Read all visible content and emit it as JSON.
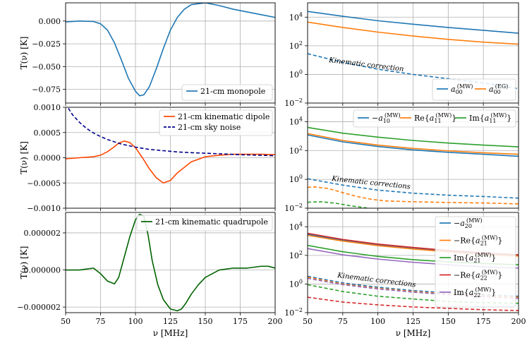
{
  "figure": {
    "x_axis_label": "ν [MHz]",
    "y_axis_label": "T(ν) [K]"
  },
  "colors": {
    "blue": "#1f77b4",
    "orange": "#ff7f0e",
    "green": "#2ca02c",
    "red": "#d62728",
    "purple": "#9467bd",
    "kin_dipole": "#ff4500",
    "sky_noise": "#00008b",
    "kin_quad": "#006400"
  },
  "chart_data": [
    {
      "id": "p1",
      "type": "line",
      "x_range": [
        50,
        200
      ],
      "y_range": [
        -0.09,
        0.02
      ],
      "y_scale": "linear",
      "x_ticks": [
        "50",
        "75",
        "100",
        "125",
        "150",
        "175",
        "200"
      ],
      "x_tick_labels_shown": false,
      "y_ticks": [
        {
          "v": 0.0,
          "label": "0.000"
        },
        {
          "v": -0.025,
          "label": "−0.025"
        },
        {
          "v": -0.05,
          "label": "−0.050"
        },
        {
          "v": -0.075,
          "label": "−0.075"
        }
      ],
      "ylabel": "T(ν) [K]",
      "series": [
        {
          "name": "21-cm monopole",
          "color": "#1f77b4",
          "dash": "solid",
          "x": [
            50,
            60,
            70,
            75,
            80,
            85,
            90,
            95,
            100,
            103,
            106,
            110,
            115,
            120,
            125,
            130,
            135,
            140,
            150,
            160,
            170,
            180,
            190,
            200
          ],
          "y": [
            -0.001,
            0.0,
            -0.0005,
            -0.003,
            -0.01,
            -0.024,
            -0.043,
            -0.063,
            -0.077,
            -0.082,
            -0.081,
            -0.072,
            -0.052,
            -0.03,
            -0.01,
            0.004,
            0.013,
            0.018,
            0.02,
            0.017,
            0.013,
            0.01,
            0.007,
            0.004
          ]
        }
      ],
      "legend": {
        "position": "bottom-right",
        "entries": [
          "21-cm monopole"
        ]
      }
    },
    {
      "id": "p2",
      "type": "line",
      "x_range": [
        50,
        200
      ],
      "y_range": [
        0.01,
        100000
      ],
      "y_scale": "log",
      "x_ticks": [
        "50",
        "75",
        "100",
        "125",
        "150",
        "175",
        "200"
      ],
      "x_tick_labels_shown": false,
      "y_ticks": [
        {
          "v": 10000,
          "base": "10",
          "exp": "4"
        },
        {
          "v": 100,
          "base": "10",
          "exp": "2"
        },
        {
          "v": 1,
          "base": "10",
          "exp": "0"
        },
        {
          "v": 0.01,
          "base": "10",
          "exp": "−2"
        }
      ],
      "annotation": "Kinematic correction",
      "series": [
        {
          "name": "a00 (MW)",
          "color": "#1f77b4",
          "dash": "solid",
          "x": [
            50,
            75,
            100,
            125,
            150,
            175,
            200
          ],
          "y": [
            25000,
            11500,
            5600,
            3200,
            1900,
            1200,
            750
          ]
        },
        {
          "name": "a00 (EG)",
          "color": "#ff7f0e",
          "dash": "solid",
          "x": [
            50,
            75,
            100,
            125,
            150,
            175,
            200
          ],
          "y": [
            4500,
            1900,
            900,
            480,
            280,
            180,
            130
          ]
        },
        {
          "name": "kinematic correction",
          "color": "#1f77b4",
          "dash": "dashed",
          "x": [
            50,
            75,
            100,
            125,
            150,
            175,
            200
          ],
          "y": [
            28,
            7,
            2.3,
            1.0,
            0.5,
            0.25,
            0.1
          ]
        }
      ],
      "legend": {
        "position": "bottom-right",
        "entries": [
          {
            "prefix": "",
            "sym": "a",
            "sub": "00",
            "sup": "(MW)",
            "suffix": "",
            "color": "#1f77b4"
          },
          {
            "prefix": "",
            "sym": "a",
            "sub": "00",
            "sup": "(EG)",
            "suffix": "",
            "color": "#ff7f0e"
          }
        ]
      }
    },
    {
      "id": "p3",
      "type": "line",
      "x_range": [
        50,
        200
      ],
      "y_range": [
        -0.001,
        0.001
      ],
      "y_scale": "linear",
      "x_ticks": [
        "50",
        "75",
        "100",
        "125",
        "150",
        "175",
        "200"
      ],
      "x_tick_labels_shown": false,
      "y_ticks": [
        {
          "v": 0.001,
          "label": "0.0010"
        },
        {
          "v": 0.0005,
          "label": "0.0005"
        },
        {
          "v": 0.0,
          "label": "0.0000"
        },
        {
          "v": -0.0005,
          "label": "−0.0005"
        },
        {
          "v": -0.001,
          "label": "−0.0010"
        }
      ],
      "ylabel": "T(ν) [K]",
      "series": [
        {
          "name": "21-cm kinematic dipole",
          "color": "#ff4500",
          "dash": "solid",
          "x": [
            50,
            60,
            70,
            75,
            80,
            85,
            88,
            92,
            96,
            100,
            105,
            110,
            115,
            120,
            125,
            130,
            140,
            150,
            160,
            170,
            180,
            190,
            200
          ],
          "y": [
            -2e-05,
            0.0,
            2e-05,
            5e-05,
            0.00012,
            0.00022,
            0.00029,
            0.00033,
            0.0003,
            0.0002,
            0.0,
            -0.00022,
            -0.0004,
            -0.0005,
            -0.00045,
            -0.0003,
            -8e-05,
            2e-05,
            5e-05,
            7e-05,
            7e-05,
            7e-05,
            6e-05
          ]
        },
        {
          "name": "21-cm sky noise",
          "color": "#00008b",
          "dash": "dashed",
          "x": [
            52,
            55,
            60,
            65,
            70,
            75,
            80,
            90,
            100,
            110,
            120,
            130,
            140,
            150,
            175,
            200
          ],
          "y": [
            0.00098,
            0.00085,
            0.0007,
            0.00058,
            0.00049,
            0.00042,
            0.00036,
            0.00027,
            0.00021,
            0.000165,
            0.00014,
            0.000115,
            0.0001,
            9e-05,
            6e-05,
            4e-05
          ]
        }
      ],
      "legend": {
        "position": "top-right",
        "entries": [
          "21-cm kinematic dipole",
          "21-cm sky noise"
        ]
      }
    },
    {
      "id": "p4",
      "type": "line",
      "x_range": [
        50,
        200
      ],
      "y_range": [
        0.01,
        100000
      ],
      "y_scale": "log",
      "x_ticks": [
        "50",
        "75",
        "100",
        "125",
        "150",
        "175",
        "200"
      ],
      "x_tick_labels_shown": false,
      "y_ticks": [
        {
          "v": 10000,
          "base": "10",
          "exp": "4"
        },
        {
          "v": 100,
          "base": "10",
          "exp": "2"
        },
        {
          "v": 1,
          "base": "10",
          "exp": "0"
        },
        {
          "v": 0.01,
          "base": "10",
          "exp": "−2"
        }
      ],
      "annotation": "Kinematic corrections",
      "series": [
        {
          "name": "-a10 (MW)",
          "color": "#1f77b4",
          "dash": "solid",
          "x": [
            50,
            75,
            100,
            125,
            150,
            175,
            200
          ],
          "y": [
            1200,
            400,
            190,
            110,
            75,
            55,
            40
          ]
        },
        {
          "name": "Re a11 (MW)",
          "color": "#ff7f0e",
          "dash": "solid",
          "x": [
            50,
            75,
            100,
            125,
            150,
            175,
            200
          ],
          "y": [
            1500,
            500,
            240,
            140,
            95,
            70,
            55
          ]
        },
        {
          "name": "Im a11 (MW)",
          "color": "#2ca02c",
          "dash": "solid",
          "x": [
            50,
            75,
            100,
            125,
            150,
            175,
            200
          ],
          "y": [
            4000,
            1600,
            850,
            500,
            330,
            240,
            180
          ]
        },
        {
          "name": "-a10 kin",
          "color": "#1f77b4",
          "dash": "dashed",
          "x": [
            50,
            75,
            100,
            125,
            150,
            175,
            200
          ],
          "y": [
            1.1,
            0.4,
            0.18,
            0.11,
            0.08,
            0.065,
            0.05
          ]
        },
        {
          "name": "Re a11 kin",
          "color": "#ff7f0e",
          "dash": "dashed",
          "x": [
            50,
            55,
            65,
            75,
            85,
            95,
            105,
            115,
            125,
            150,
            175,
            200
          ],
          "y": [
            0.28,
            0.3,
            0.23,
            0.12,
            0.065,
            0.042,
            0.032,
            0.03,
            0.028,
            0.025,
            0.023,
            0.02
          ]
        },
        {
          "name": "Im a11 kin",
          "color": "#2ca02c",
          "dash": "dashed",
          "x": [
            50,
            60,
            70,
            80,
            90,
            100
          ],
          "y": [
            0.026,
            0.028,
            0.022,
            0.015,
            0.011,
            0.008
          ]
        }
      ],
      "legend": {
        "position": "top-right",
        "entries": [
          {
            "prefix": "−",
            "sym": "a",
            "sub": "10",
            "sup": "(MW)",
            "suffix": "",
            "color": "#1f77b4"
          },
          {
            "prefix": "Re{",
            "sym": "a",
            "sub": "11",
            "sup": "(MW)",
            "suffix": "}",
            "color": "#ff7f0e"
          },
          {
            "prefix": "Im{",
            "sym": "a",
            "sub": "11",
            "sup": "(MW)",
            "suffix": "}",
            "color": "#2ca02c"
          }
        ]
      }
    },
    {
      "id": "p5",
      "type": "line",
      "x_range": [
        50,
        200
      ],
      "y_range": [
        -2.3e-06,
        3.1e-06
      ],
      "y_scale": "linear",
      "x_ticks": [
        "50",
        "75",
        "100",
        "125",
        "150",
        "175",
        "200"
      ],
      "x_tick_labels_shown": true,
      "y_ticks": [
        {
          "v": 2e-06,
          "label": "0.000002"
        },
        {
          "v": 0.0,
          "label": "0.000000"
        },
        {
          "v": -2e-06,
          "label": "−0.000002"
        }
      ],
      "ylabel": "T(ν) [K]",
      "xlabel": "ν [MHz]",
      "series": [
        {
          "name": "21-cm kinematic quadrupole",
          "color": "#006400",
          "dash": "solid",
          "x": [
            50,
            60,
            65,
            70,
            75,
            80,
            85,
            88,
            92,
            96,
            100,
            103,
            106,
            109,
            112,
            116,
            120,
            125,
            130,
            133,
            136,
            140,
            145,
            150,
            160,
            170,
            180,
            190,
            195,
            200
          ],
          "y": [
            0.0,
            0.0,
            5e-08,
            1e-07,
            -2e-07,
            -6e-07,
            -7.5e-07,
            -4e-07,
            7e-07,
            1.8e-06,
            2.7e-06,
            3e-06,
            2.9e-06,
            1.9e-06,
            5e-07,
            -8e-07,
            -1.6e-06,
            -2.1e-06,
            -2.2e-06,
            -2.1e-06,
            -1.8e-06,
            -1.3e-06,
            -8e-07,
            -4e-07,
            0.0,
            1e-07,
            1e-07,
            2e-07,
            2e-07,
            1e-07
          ]
        }
      ],
      "legend": {
        "position": "top-right",
        "entries": [
          "21-cm kinematic quadrupole"
        ]
      }
    },
    {
      "id": "p6",
      "type": "line",
      "x_range": [
        50,
        200
      ],
      "y_range": [
        0.01,
        100000
      ],
      "y_scale": "log",
      "x_ticks": [
        "50",
        "75",
        "100",
        "125",
        "150",
        "175",
        "200"
      ],
      "x_tick_labels_shown": true,
      "y_ticks": [
        {
          "v": 10000,
          "base": "10",
          "exp": "4"
        },
        {
          "v": 100,
          "base": "10",
          "exp": "2"
        },
        {
          "v": 1,
          "base": "10",
          "exp": "0"
        },
        {
          "v": 0.01,
          "base": "10",
          "exp": "−2"
        }
      ],
      "annotation": "Kinematic corrections",
      "xlabel": "ν [MHz]",
      "series": [
        {
          "name": "-a20 (MW)",
          "color": "#1f77b4",
          "dash": "solid",
          "x": [
            50,
            75,
            100,
            125,
            150,
            175,
            200
          ],
          "y": [
            3000,
            1150,
            550,
            330,
            200,
            130,
            100
          ]
        },
        {
          "name": "-Re a21 (MW)",
          "color": "#ff7f0e",
          "dash": "solid",
          "x": [
            50,
            75,
            100,
            125,
            150,
            175,
            200
          ],
          "y": [
            2500,
            1000,
            480,
            280,
            175,
            115,
            90
          ]
        },
        {
          "name": "Im a21 (MW)",
          "color": "#2ca02c",
          "dash": "solid",
          "x": [
            50,
            75,
            100,
            125,
            150,
            175,
            200
          ],
          "y": [
            500,
            180,
            85,
            50,
            35,
            27,
            22
          ]
        },
        {
          "name": "-Re a22 (MW)",
          "color": "#d62728",
          "dash": "solid",
          "x": [
            50,
            75,
            100,
            125,
            150,
            175,
            200
          ],
          "y": [
            3500,
            1300,
            620,
            360,
            220,
            150,
            110
          ]
        },
        {
          "name": "Im a22 (MW)",
          "color": "#9467bd",
          "dash": "solid",
          "x": [
            50,
            75,
            100,
            125,
            150,
            175,
            200
          ],
          "y": [
            300,
            110,
            55,
            33,
            22,
            16,
            13
          ]
        },
        {
          "name": "-a20 kin",
          "color": "#1f77b4",
          "dash": "dashed",
          "x": [
            50,
            75,
            100,
            125,
            150,
            175,
            200
          ],
          "y": [
            3.5,
            1.2,
            0.6,
            0.35,
            0.24,
            0.18,
            0.14
          ]
        },
        {
          "name": "-Re a21 kin",
          "color": "#ff7f0e",
          "dash": "dashed",
          "x": [
            50,
            75,
            100,
            125,
            150,
            175,
            200
          ],
          "y": [
            3.0,
            1.0,
            0.5,
            0.3,
            0.2,
            0.15,
            0.12
          ]
        },
        {
          "name": "Im a21 kin",
          "color": "#2ca02c",
          "dash": "dashed",
          "x": [
            50,
            75,
            100,
            125,
            150,
            175,
            200
          ],
          "y": [
            0.9,
            0.3,
            0.14,
            0.09,
            0.06,
            0.05,
            0.045
          ]
        },
        {
          "name": "-Re a22 kin",
          "color": "#d62728",
          "dash": "dashed",
          "x": [
            50,
            75,
            100,
            125,
            150,
            175,
            200
          ],
          "y": [
            0.12,
            0.055,
            0.035,
            0.025,
            0.02,
            0.016,
            0.014
          ]
        },
        {
          "name": "Im a22 kin",
          "color": "#9467bd",
          "dash": "dashed",
          "x": [
            50,
            75,
            100,
            125,
            150,
            175,
            200
          ],
          "y": [
            2.5,
            0.9,
            0.45,
            0.27,
            0.18,
            0.13,
            0.1
          ]
        }
      ],
      "legend": {
        "position": "right",
        "entries": [
          {
            "prefix": "−",
            "sym": "a",
            "sub": "20",
            "sup": "(MW)",
            "suffix": "",
            "color": "#1f77b4"
          },
          {
            "prefix": "−Re{",
            "sym": "a",
            "sub": "21",
            "sup": "(MW)",
            "suffix": "}",
            "color": "#ff7f0e"
          },
          {
            "prefix": "Im{",
            "sym": "a",
            "sub": "21",
            "sup": "(MW)",
            "suffix": "}",
            "color": "#2ca02c"
          },
          {
            "prefix": "−Re{",
            "sym": "a",
            "sub": "22",
            "sup": "(MW)",
            "suffix": "}",
            "color": "#d62728"
          },
          {
            "prefix": "Im{",
            "sym": "a",
            "sub": "22",
            "sup": "(MW)",
            "suffix": "}",
            "color": "#9467bd"
          }
        ]
      }
    }
  ]
}
